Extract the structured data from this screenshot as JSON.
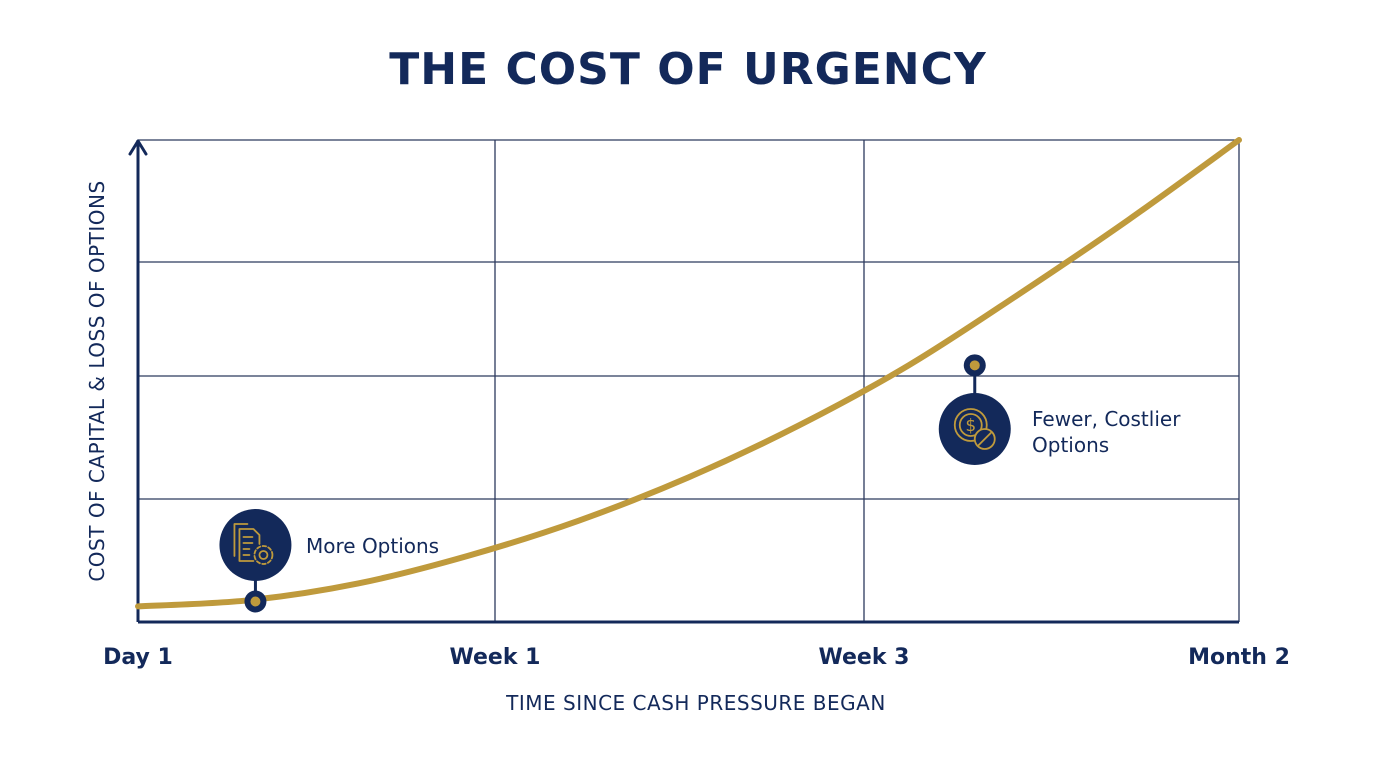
{
  "colors": {
    "navy": "#13295a",
    "gold": "#bf9a3c",
    "grid": "#2c3a5e",
    "background": "#ffffff"
  },
  "chart_data": {
    "type": "line",
    "title": "THE COST OF URGENCY",
    "xlabel": "TIME SINCE CASH PRESSURE BEGAN",
    "ylabel": "COST OF CAPITAL & LOSS OF OPTIONS",
    "x_tick_labels": [
      "Day 1",
      "Week 1",
      "Week 3",
      "Month 2"
    ],
    "xlim": [
      0,
      3
    ],
    "ylim": [
      0,
      4
    ],
    "grid": true,
    "series": [
      {
        "color": "#bf9a3c",
        "x": [
          0,
          0.3,
          0.6,
          0.9,
          1.2,
          1.5,
          1.8,
          2.1,
          2.4,
          2.7,
          3.0
        ],
        "y": [
          0.13,
          0.18,
          0.32,
          0.55,
          0.84,
          1.2,
          1.63,
          2.13,
          2.72,
          3.34,
          4.0
        ]
      }
    ],
    "annotations": [
      {
        "text": "More Options",
        "icon": "document-gear-icon",
        "x": 0.32,
        "y": 0.17
      },
      {
        "text": "Fewer, Costlier Options",
        "lines": [
          "Fewer, Costlier",
          "Options"
        ],
        "icon": "dollar-blocked-icon",
        "x": 2.28,
        "y": 2.13
      }
    ]
  }
}
